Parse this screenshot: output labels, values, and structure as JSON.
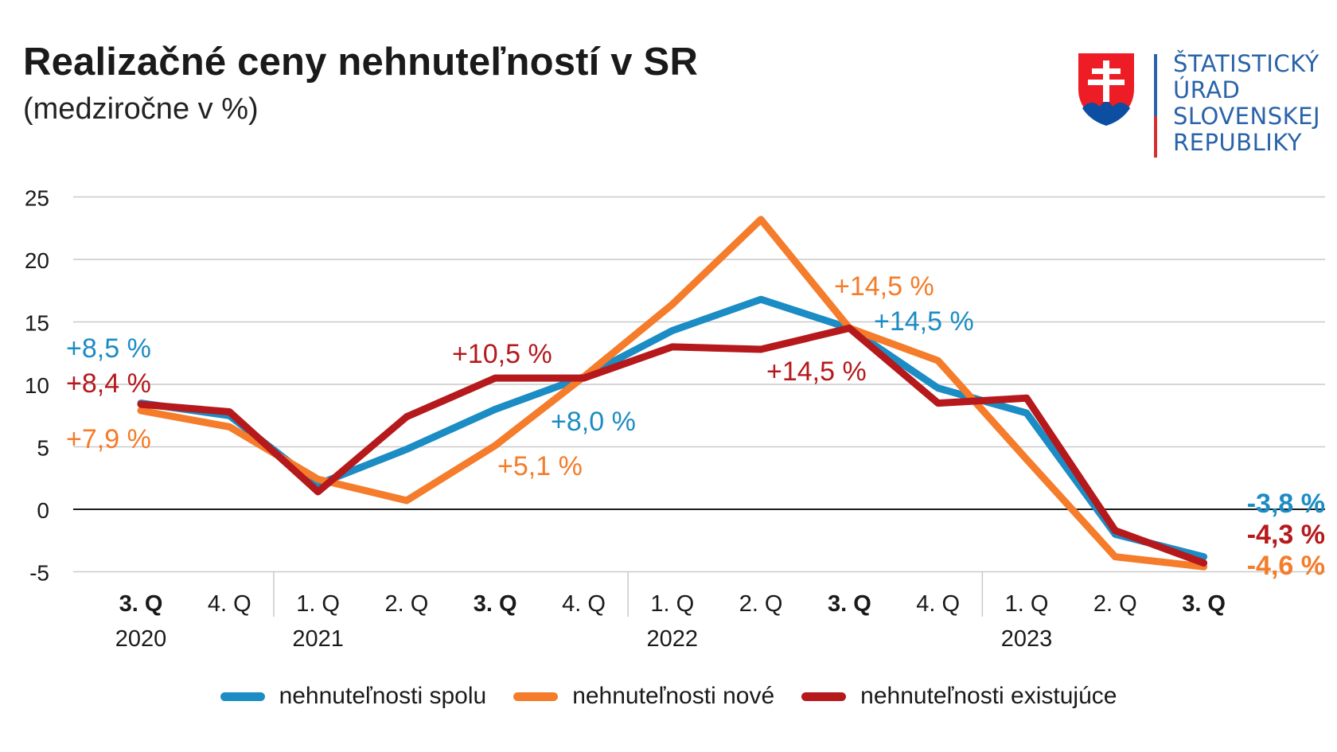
{
  "title": "Realizačné ceny nehnuteľností v SR",
  "subtitle": "(medziročne v %)",
  "logo": {
    "lines": [
      "ŠTATISTICKÝ",
      "ÚRAD",
      "SLOVENSKEJ",
      "REPUBLIKY"
    ],
    "colors": {
      "blue": "#2a63a8",
      "red": "#d32f2f"
    }
  },
  "chart_data": {
    "type": "line",
    "title": "Realizačné ceny nehnuteľností v SR",
    "subtitle": "(medziročne v %)",
    "ylim": [
      -5,
      25
    ],
    "yticks": [
      25,
      20,
      15,
      10,
      5,
      0,
      -5
    ],
    "grid": true,
    "categories": [
      "3. Q",
      "4. Q",
      "1. Q",
      "2. Q",
      "3. Q",
      "4. Q",
      "1. Q",
      "2. Q",
      "3. Q",
      "4. Q",
      "1. Q",
      "2. Q",
      "3. Q"
    ],
    "bold_categories": [
      0,
      4,
      8,
      12
    ],
    "years": [
      {
        "label": "2020",
        "center_index": 0
      },
      {
        "label": "2021",
        "center_index": 2
      },
      {
        "label": "2022",
        "center_index": 6
      },
      {
        "label": "2023",
        "center_index": 10
      }
    ],
    "year_separators_after_index": [
      1,
      5,
      9
    ],
    "legend_position": "bottom",
    "series": [
      {
        "name": "nehnuteľnosti spolu",
        "color": "#1b8cc4",
        "values": [
          8.5,
          7.5,
          2.0,
          4.8,
          8.0,
          10.6,
          14.3,
          16.8,
          14.5,
          9.7,
          7.7,
          -2.0,
          -3.8
        ]
      },
      {
        "name": "nehnuteľnosti nové",
        "color": "#f47c2a",
        "values": [
          7.9,
          6.6,
          2.4,
          0.7,
          5.1,
          10.6,
          16.4,
          23.2,
          14.5,
          11.9,
          4.0,
          -3.8,
          -4.6
        ]
      },
      {
        "name": "nehnuteľnosti existujúce",
        "color": "#b5191c",
        "values": [
          8.4,
          7.8,
          1.4,
          7.4,
          10.5,
          10.5,
          13.0,
          12.8,
          14.5,
          8.5,
          8.9,
          -1.7,
          -4.3
        ]
      }
    ],
    "annotations": [
      {
        "text": "+8,5 %",
        "series": 0,
        "index": 0,
        "bold": false
      },
      {
        "text": "+8,4 %",
        "series": 2,
        "index": 0,
        "bold": false
      },
      {
        "text": "+7,9 %",
        "series": 1,
        "index": 0,
        "bold": false
      },
      {
        "text": "+10,5 %",
        "series": 2,
        "index": 4,
        "bold": false
      },
      {
        "text": "+5,1 %",
        "series": 1,
        "index": 4,
        "bold": false
      },
      {
        "text": "+8,0 %",
        "series": 0,
        "index": 4,
        "bold": false
      },
      {
        "text": "+14,5 %",
        "series": 1,
        "index": 8,
        "bold": false
      },
      {
        "text": "+14,5 %",
        "series": 0,
        "index": 8,
        "bold": false
      },
      {
        "text": "+14,5 %",
        "series": 2,
        "index": 8,
        "bold": false
      },
      {
        "text": "-3,8 %",
        "series": 0,
        "index": 12,
        "bold": true
      },
      {
        "text": "-4,3 %",
        "series": 2,
        "index": 12,
        "bold": true
      },
      {
        "text": "-4,6 %",
        "series": 1,
        "index": 12,
        "bold": true
      }
    ]
  }
}
